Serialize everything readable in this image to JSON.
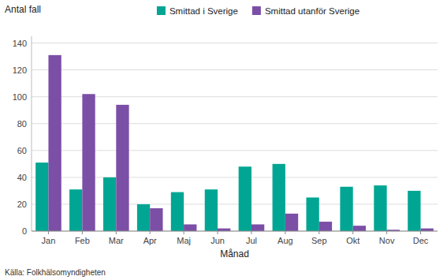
{
  "chart_data": {
    "type": "bar",
    "ylabel": "Antal fall",
    "xlabel": "Månad",
    "source": "Källa: Folkhälsomyndigheten",
    "categories": [
      "Jan",
      "Feb",
      "Mar",
      "Apr",
      "Maj",
      "Jun",
      "Jul",
      "Aug",
      "Sep",
      "Okt",
      "Nov",
      "Dec"
    ],
    "series": [
      {
        "name": "Smittad i Sverige",
        "color": "#00A693",
        "values": [
          51,
          31,
          40,
          20,
          29,
          31,
          48,
          50,
          25,
          33,
          34,
          30
        ]
      },
      {
        "name": "Smittad utanför Sverige",
        "color": "#7B4FA6",
        "values": [
          131,
          102,
          94,
          17,
          5,
          2,
          5,
          13,
          7,
          4,
          1,
          2
        ]
      }
    ],
    "ylim": [
      0,
      145
    ],
    "yticks": [
      0,
      20,
      40,
      60,
      80,
      100,
      120,
      140
    ],
    "grid": true,
    "legend": "top"
  }
}
